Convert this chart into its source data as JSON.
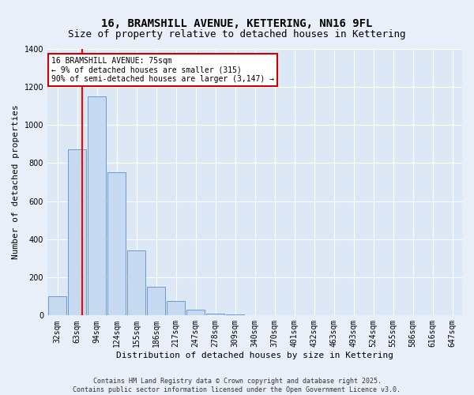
{
  "title": "16, BRAMSHILL AVENUE, KETTERING, NN16 9FL",
  "subtitle": "Size of property relative to detached houses in Kettering",
  "xlabel": "Distribution of detached houses by size in Kettering",
  "ylabel": "Number of detached properties",
  "bar_values": [
    100,
    870,
    1150,
    750,
    340,
    150,
    75,
    30,
    10,
    5,
    3,
    2,
    1,
    1,
    0,
    0,
    0,
    0,
    0,
    0,
    0
  ],
  "categories": [
    "32sqm",
    "63sqm",
    "94sqm",
    "124sqm",
    "155sqm",
    "186sqm",
    "217sqm",
    "247sqm",
    "278sqm",
    "309sqm",
    "340sqm",
    "370sqm",
    "401sqm",
    "432sqm",
    "463sqm",
    "493sqm",
    "524sqm",
    "555sqm",
    "586sqm",
    "616sqm",
    "647sqm"
  ],
  "ylim": [
    0,
    1400
  ],
  "yticks": [
    0,
    200,
    400,
    600,
    800,
    1000,
    1200,
    1400
  ],
  "bar_color": "#c5d9f0",
  "bar_edge_color": "#5b8fc9",
  "red_line_x": 1.25,
  "annotation_text": "16 BRAMSHILL AVENUE: 75sqm\n← 9% of detached houses are smaller (315)\n90% of semi-detached houses are larger (3,147) →",
  "annotation_box_color": "#ffffff",
  "annotation_box_edge": "#cc0000",
  "bg_color": "#e8eff8",
  "plot_bg": "#dce8f5",
  "footer1": "Contains HM Land Registry data © Crown copyright and database right 2025.",
  "footer2": "Contains public sector information licensed under the Open Government Licence v3.0.",
  "title_fontsize": 10,
  "subtitle_fontsize": 9,
  "axis_label_fontsize": 8,
  "tick_fontsize": 7,
  "footer_fontsize": 6
}
